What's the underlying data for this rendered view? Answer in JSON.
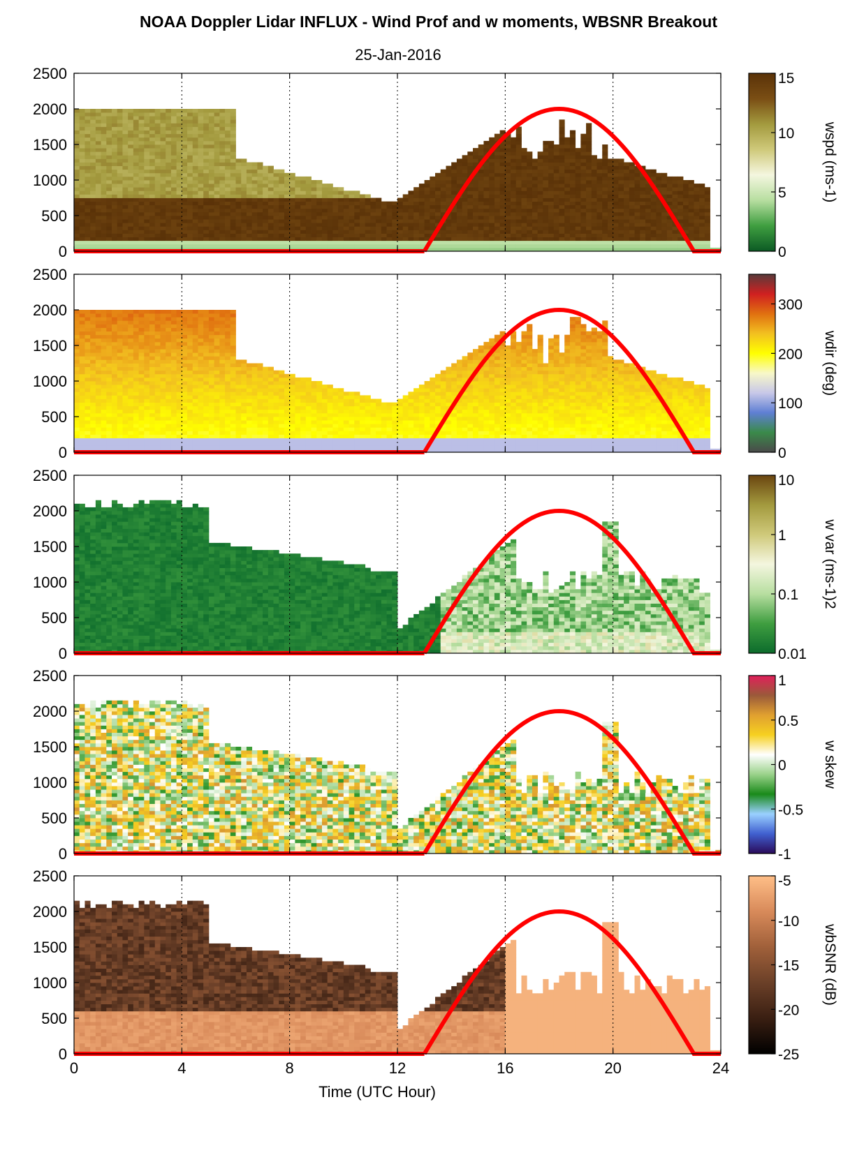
{
  "figure": {
    "title": "NOAA Doppler Lidar INFLUX - Wind Prof and w moments, WBSNR Breakout",
    "date": "25-Jan-2016",
    "xlabel": "Time (UTC Hour)",
    "xticks": [
      "0",
      "4",
      "8",
      "12",
      "16",
      "20",
      "24"
    ],
    "yticks": [
      "0",
      "500",
      "1000",
      "1500",
      "2000",
      "2500"
    ]
  },
  "chart_data": [
    {
      "type": "heatmap",
      "variable": "wspd",
      "colorbar_label": "wspd (ms-1)",
      "colorbar_ticks": [
        "0",
        "5",
        "10",
        "15"
      ],
      "clim": [
        0,
        15
      ],
      "colors": [
        "#0c5a24",
        "#3f9e40",
        "#b7dea0",
        "#f4f6df",
        "#cfc97a",
        "#a39a3e",
        "#7a4e14",
        "#5a3208"
      ],
      "xlim": [
        0,
        24
      ],
      "ylim": [
        0,
        2500
      ],
      "sun_curve": {
        "start_hour": 13,
        "end_hour": 23,
        "peak_hour": 18,
        "peak_height": 2000,
        "color": "#ff0000"
      }
    },
    {
      "type": "heatmap",
      "variable": "wdir",
      "colorbar_label": "wdir (deg)",
      "colorbar_ticks": [
        "0",
        "100",
        "200",
        "300"
      ],
      "clim": [
        0,
        360
      ],
      "colors": [
        "#4a4a4a",
        "#3a8a4a",
        "#5f7fd4",
        "#c8c8e8",
        "#f8f8c8",
        "#ffff00",
        "#f2c020",
        "#e07010",
        "#d02020",
        "#5a3a3a"
      ],
      "xlim": [
        0,
        24
      ],
      "ylim": [
        0,
        2500
      ],
      "sun_curve": {
        "start_hour": 13,
        "end_hour": 23,
        "peak_hour": 18,
        "peak_height": 2000,
        "color": "#ff0000"
      }
    },
    {
      "type": "heatmap",
      "variable": "w var",
      "colorbar_label": "w var (ms-1)2",
      "colorbar_ticks": [
        "0.01",
        "0.1",
        "1",
        "10"
      ],
      "clim": [
        0.01,
        10
      ],
      "colorbar_scale": "log",
      "colors": [
        "#0c6b2c",
        "#3f9e40",
        "#b7dea0",
        "#f4f6df",
        "#cfc97a",
        "#a39a3e",
        "#6a4510"
      ],
      "xlim": [
        0,
        24
      ],
      "ylim": [
        0,
        2500
      ],
      "sun_curve": {
        "start_hour": 13,
        "end_hour": 23,
        "peak_hour": 18,
        "peak_height": 2000,
        "color": "#ff0000"
      }
    },
    {
      "type": "heatmap",
      "variable": "w skew",
      "colorbar_label": "w skew",
      "colorbar_ticks": [
        "-1",
        "-0.5",
        "0",
        "0.5",
        "1"
      ],
      "clim": [
        -1,
        1
      ],
      "colors": [
        "#2a0a5a",
        "#4060d0",
        "#9ad0ff",
        "#1a8a1a",
        "#9ad28a",
        "#ffffff",
        "#f6d020",
        "#e0a030",
        "#9a5a3a",
        "#e0205a"
      ],
      "xlim": [
        0,
        24
      ],
      "ylim": [
        0,
        2500
      ],
      "sun_curve": {
        "start_hour": 13,
        "end_hour": 23,
        "peak_hour": 18,
        "peak_height": 2000,
        "color": "#ff0000"
      }
    },
    {
      "type": "heatmap",
      "variable": "wbSNR",
      "colorbar_label": "wbSNR (dB)",
      "colorbar_ticks": [
        "-25",
        "-20",
        "-15",
        "-10",
        "-5"
      ],
      "clim": [
        -25,
        -5
      ],
      "colors": [
        "#000000",
        "#3a1f12",
        "#6b4028",
        "#a0603a",
        "#d88a5a",
        "#ffbf88"
      ],
      "xlim": [
        0,
        24
      ],
      "ylim": [
        0,
        2500
      ],
      "sun_curve": {
        "start_hour": 13,
        "end_hour": 23,
        "peak_hour": 18,
        "peak_height": 2000,
        "color": "#ff0000"
      }
    }
  ]
}
